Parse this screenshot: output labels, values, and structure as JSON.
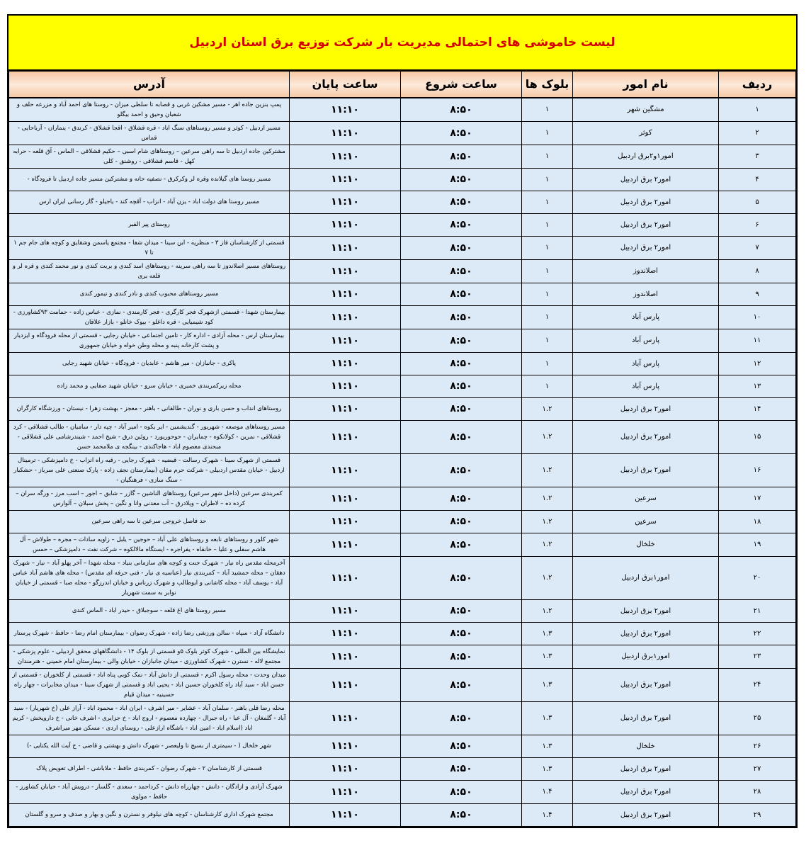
{
  "title": "لیست خاموشی های احتمالی  مدیریت بار  شرکت توزیع برق استان اردبیل",
  "headers": {
    "row": "ردیف",
    "name": "نام امور",
    "blocks": "بلوک ها",
    "start": "ساعت شروع",
    "end": "ساعت پایان",
    "address": "آدرس"
  },
  "rows": [
    {
      "n": "۱",
      "name": "مشگین شهر",
      "blocks": "۱",
      "start": "۸:۵۰",
      "end": "۱۱:۱۰",
      "address": "پمپ بنزین جاده اهر - مسیر مشکین غربی و قصابه تا سلطی میزان - روستا های احمد آباد و مزرعه حلف و شعبان وحیق و احمد بیگلو"
    },
    {
      "n": "۲",
      "name": "کوثر",
      "blocks": "۱",
      "start": "۸:۵۰",
      "end": "۱۱:۱۰",
      "address": "مسیر اردبیل - کوثر و مسیر روستاهای سنگ اباد - قره قشلاق - اقجا قشلاق - کرندق - ینماران - آرباحایی - قماس"
    },
    {
      "n": "۳",
      "name": "امور۱و۲برق اردبیل",
      "blocks": "۱",
      "start": "۸:۵۰",
      "end": "۱۱:۱۰",
      "address": "مشترکین جاده اردبیل تا سه راهی سرعین – روستاهای شام اسبی – حکیم قشلاقی – الماس - آق قلعه - حرابه کهل - قاسم قشلاقی - روشنق - کلی"
    },
    {
      "n": "۴",
      "name": "امور۲ برق اردبیل",
      "blocks": "۱",
      "start": "۸:۵۰",
      "end": "۱۱:۱۰",
      "address": "مسیر روستا های گیلانده وقره لر وکرکرق - نصفیه حانه و مشترکین مسیر جاده اردبیل تا فرودگاه -"
    },
    {
      "n": "۵",
      "name": "امور۲ برق اردبیل",
      "blocks": "۱",
      "start": "۸:۵۰",
      "end": "۱۱:۱۰",
      "address": "مسیر روستا های دولت اباد - یزن آباد - انزاب - آقچه کند - یاجیلو - گاز رسانی ایران ارس"
    },
    {
      "n": "۶",
      "name": "امور۲ برق اردبیل",
      "blocks": "۱",
      "start": "۸:۵۰",
      "end": "۱۱:۱۰",
      "address": "روستای پیر الفبر"
    },
    {
      "n": "۷",
      "name": "امور۲ برق اردبیل",
      "blocks": "۱",
      "start": "۸:۵۰",
      "end": "۱۱:۱۰",
      "address": "قسمتی از کارشناسان فاز ۳ - منظریه - ابن سینا - میدان شفا - مجتمع یاسمن وشقایق و کوچه های جام جم ۱ تا ۷"
    },
    {
      "n": "۸",
      "name": "اصلاندوز",
      "blocks": "۱",
      "start": "۸:۵۰",
      "end": "۱۱:۱۰",
      "address": "روستاهای مسیر اصلاندوز تا سه راهی سرینه - روستاهای اسد کندی و بربت کندی و نور محمد کندی و قره لر و قلعه بری"
    },
    {
      "n": "۹",
      "name": "اصلاندوز",
      "blocks": "۱",
      "start": "۸:۵۰",
      "end": "۱۱:۱۰",
      "address": "مسیر روستاهای محبوب کندی و نادر کندی و تیمور کندی"
    },
    {
      "n": "۱۰",
      "name": "پارس آباد",
      "blocks": "۱",
      "start": "۸:۵۰",
      "end": "۱۱:۱۰",
      "address": "بیمارستان شهدا - قسمتی ازشهرک فجر کارگری - فجر کارمندی - نمازی - عباس زاده - حمامت ۹۳کشاورزی - کود شیمیایی - قره داغلو - بیوک خانلو - بازار علاقان"
    },
    {
      "n": "۱۱",
      "name": "پارس آباد",
      "blocks": "۱",
      "start": "۸:۵۰",
      "end": "۱۱:۱۰",
      "address": "بیمارستان ارس - محله آزادی - اداره کار - تامین اجتماعی - خیابان رجایی - قسمتی از محله فرودگاه و ایزدیار و پشت کارخانه پنبه و محله وطن خواه و خیابان جمهوری"
    },
    {
      "n": "۱۲",
      "name": "پارس آباد",
      "blocks": "۱",
      "start": "۸:۵۰",
      "end": "۱۱:۱۰",
      "address": "پاکری - جانبازان - میر هاشم - عابدیان - فرودگاه - خیابان شهید رجایی"
    },
    {
      "n": "۱۳",
      "name": "پارس آباد",
      "blocks": "۱",
      "start": "۸:۵۰",
      "end": "۱۱:۱۰",
      "address": "محله زیرکمربندی خمیری - خیابان سرو - خیابان شهید صفایی و محمد زاده"
    },
    {
      "n": "۱۴",
      "name": "امور۲ برق اردبیل",
      "blocks": "۱.۲",
      "start": "۸:۵۰",
      "end": "۱۱:۱۰",
      "address": "روستاهای انداب و حسن باری و نوران - طالقانی - باهنر - معجز - بهشت زهرا - نیستان - ورزشگاه کارگران"
    },
    {
      "n": "۱۵",
      "name": "امور۲ برق اردبیل",
      "blocks": "۱.۲",
      "start": "۸:۵۰",
      "end": "۱۱:۱۰",
      "address": "مسیر روستاهای موصعه - شهریور - گندیشمین - ایر یکوه - امیر آباد - چپه دار - سامیان - طالب قشلاقی - کرد قشلاقی - نمرین - کولانکوه - چمایران - حوحوریورد - روئین درق - شیخ احمد - شیندرشامی علی قشلاقی - مبحندی معصوم اباد - هاجاکندی - بینگجه ی ملامحمد حسن"
    },
    {
      "n": "۱۶",
      "name": "امور۲ برق اردبیل",
      "blocks": "۱.۲",
      "start": "۸:۵۰",
      "end": "۱۱:۱۰",
      "address": "قسمتی از شهرک سینا - شهرک رسالت - قبضیه - شهرک رجایی - رقبه راه انزاب - خ دامپزشکی - ترمینال اردبیل - خیابان مقدس اردبیلی - شرکت حرم مقان (بیمارستان نجف زاده - پارک صنعتی علی سرباز - حشکبار - سنگ سازی - فرهنگیان -"
    },
    {
      "n": "۱۷",
      "name": "سرعین",
      "blocks": "۱.۲",
      "start": "۸:۵۰",
      "end": "۱۱:۱۰",
      "address": "کمربندی سرعین (داخل شهر سرعین) روستاهای الناشین – گازر – شابق – اجور – اسب مرز - ورگه سران – کرده ده – لاطران – ویلادرق – آب معدنی وانا و نگین – پخش سبلان – آلوارس"
    },
    {
      "n": "۱۸",
      "name": "سرعین",
      "blocks": "۱.۲",
      "start": "۸:۵۰",
      "end": "۱۱:۱۰",
      "address": "حد فاصل خروجی سرعین تا سه راهی سرعین"
    },
    {
      "n": "۱۹",
      "name": "خلخال",
      "blocks": "۱.۲",
      "start": "۸:۵۰",
      "end": "۱۱:۱۰",
      "address": "شهر کلور و روستاهای نابعه و روستاهای علی آباد – حوجین – یلبل – زاویه سادات – مجره – طولاش – آل هاشم سفلی و علیا – خانقاه - یفراجره - ایستگاه مالالکوه – شرکت نفت – دامپزشکی – حمس"
    },
    {
      "n": "۲۰",
      "name": "امور۱برق اردبیل",
      "blocks": "۱.۲",
      "start": "۸:۵۰",
      "end": "۱۱:۱۰",
      "address": "آخرمحله مقدس راه نیار – شهرک جنت و کوچه های سازمانی بنیاد – محله شهدا – آخر پهلو آباد – نیار – شهرک دهقان – محله جمشید آباد – کمربندی نیار (عباسیه ی نیار - فنی حرفه ای مقدس) - محله های هاشم آباد عباس آباد - یوسف آباد - محله کاشانی و ایوطالب و شهرک زرناس و خیابان اندرزگو - محله صبا - قسمتی از خیابان نوابر به سمت شهریار"
    },
    {
      "n": "۲۱",
      "name": "امور۲ برق اردبیل",
      "blocks": "۱.۲",
      "start": "۸:۵۰",
      "end": "۱۱:۱۰",
      "address": "مسیر روستا های اغ قلعه - سوجبلاق - حیدر اباد - الماس کندی"
    },
    {
      "n": "۲۲",
      "name": "امور۲ برق اردبیل",
      "blocks": "۱.۳",
      "start": "۸:۵۰",
      "end": "۱۱:۱۰",
      "address": "دانشگاه آزاد - سپاه - سالن ورزشی رضا زاده - شهرک رضوان - بیمارستان امام رضا - حافظ - شهرک پرستار"
    },
    {
      "n": "۲۳",
      "name": "امور۱برق اردبیل",
      "blocks": "۱.۳",
      "start": "۸:۵۰",
      "end": "۱۱:۱۰",
      "address": "نمایشگاه بین المللی - شهرک کوثر بلوک ۵و قسمتی از بلوک ۱۴ - دانشگاههای محقق اردبیلی - علوم پزشکی - مجتمع لاله - نسترن - شهرک کشاورزی - میدان جانبازان - خیابان والی - بیمارستان امام خمینی - هنرمندان"
    },
    {
      "n": "۲۴",
      "name": "امور۲ برق اردبیل",
      "blocks": "۱.۳",
      "start": "۸:۵۰",
      "end": "۱۱:۱۰",
      "address": "میدان وحدت - محله رسول اکرم - قسمتی از دانش آباد - نمک کوبی پناه اباد - قسمتی از کلخوران - قسمتی از حسن اباد - سید آباد راه کلخوران حسین اباد - یحیی اباد و قسمتی از شهرک سینا - میدان مخابرات - چهار راه حسینیه - میدان قیام"
    },
    {
      "n": "۲۵",
      "name": "امور۲ برق اردبیل",
      "blocks": "۱.۳",
      "start": "۸:۵۰",
      "end": "۱۱:۱۰",
      "address": "محله رضا قلی باهنر - سلمان آباد - عشایر - میر اشرف - ایران اباد - محمود اباد - آراز علی (خ شهریار) - سید آباد - گلمغان - آل عبا - راه جبرال - چهارده معصوم - اروج اباد - خ جزایری - اشرف خانی - خ داروپخش - کریم اباد (اسلام اباد - امین اباد - باشگاه ارازعلی - روستای اردی - مسکن مهر میراشرف"
    },
    {
      "n": "۲۶",
      "name": "خلخال",
      "blocks": "۱.۳",
      "start": "۸:۵۰",
      "end": "۱۱:۱۰",
      "address": "شهر خلخال ( - سیمتری از بسیج تا ولیعصر - شهرک دانش و بهشتی و قاضی - خ آیت الله یکتایی -)"
    },
    {
      "n": "۲۷",
      "name": "امور۲ برق اردبیل",
      "blocks": "۱.۳",
      "start": "۸:۵۰",
      "end": "۱۱:۱۰",
      "address": "قسمتی از کارشناسان ۲ - شهرک رضوان - کمربندی حافظ - ملاباشی - اطراف تعویض پلاک"
    },
    {
      "n": "۲۸",
      "name": "امور۲ برق اردبیل",
      "blocks": "۱.۴",
      "start": "۸:۵۰",
      "end": "۱۱:۱۰",
      "address": "شهرک آزادی و ازادگان - دانش - چهارراه دانش - کرداحمد - سعدی - گلسار - درویش آباد - خیابان کشاورز - حافظ - مولوی"
    },
    {
      "n": "۲۹",
      "name": "امور۲ برق اردبیل",
      "blocks": "۱.۴",
      "start": "۸:۵۰",
      "end": "۱۱:۱۰",
      "address": "مجتمع شهرک اداری کارشناسان - کوچه های نیلوفر و نسترن و نگین و بهار و صدف و سرو و گلستان"
    }
  ]
}
